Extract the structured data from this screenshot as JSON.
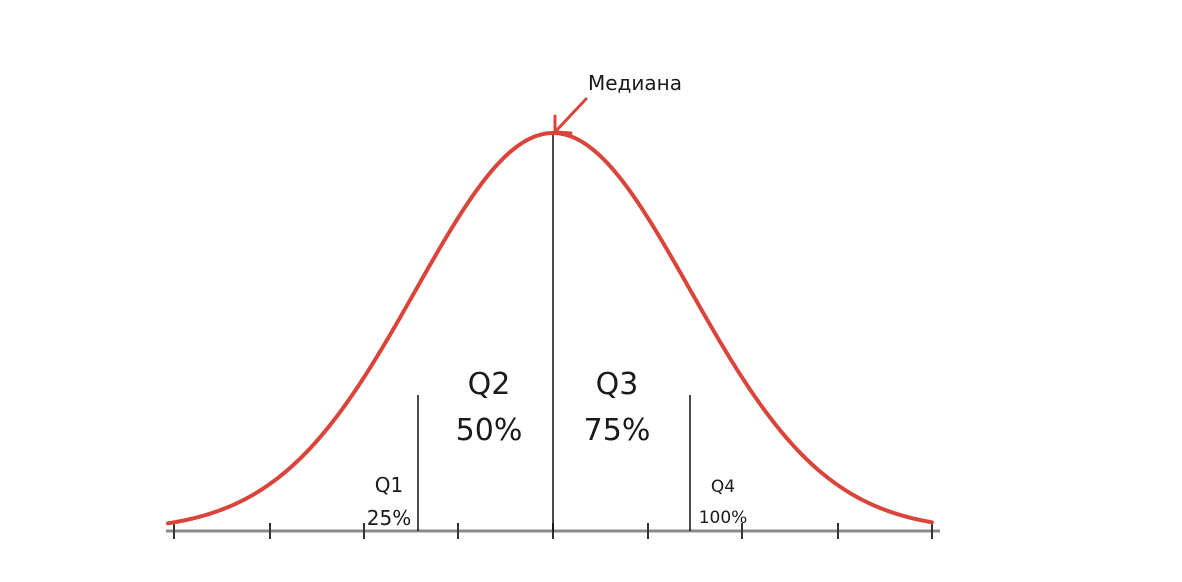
{
  "diagram": {
    "median_label": "Медиана",
    "accent_color": "#d9453a",
    "quartiles": [
      {
        "name": "Q1",
        "percent": "25%"
      },
      {
        "name": "Q2",
        "percent": "50%"
      },
      {
        "name": "Q3",
        "percent": "75%"
      },
      {
        "name": "Q4",
        "percent": "100%"
      }
    ]
  }
}
